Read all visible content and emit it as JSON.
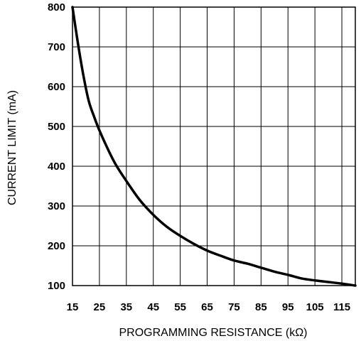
{
  "chart_data": {
    "type": "line",
    "title": "",
    "xlabel": "PROGRAMMING RESISTANCE (kΩ)",
    "ylabel": "CURRENT LIMIT (mA)",
    "xlim": [
      15,
      120
    ],
    "ylim": [
      100,
      800
    ],
    "xticks": [
      15,
      25,
      35,
      45,
      55,
      65,
      75,
      85,
      95,
      105,
      115
    ],
    "yticks": [
      100,
      200,
      300,
      400,
      500,
      600,
      700,
      800
    ],
    "grid": true,
    "series": [
      {
        "x": [
          15,
          17,
          19,
          21,
          23,
          25,
          28,
          31,
          35,
          40,
          45,
          50,
          55,
          60,
          65,
          70,
          75,
          80,
          85,
          90,
          95,
          100,
          105,
          110,
          115,
          120
        ],
        "y": [
          800,
          710,
          630,
          565,
          525,
          490,
          445,
          405,
          363,
          315,
          278,
          248,
          225,
          205,
          188,
          175,
          163,
          155,
          145,
          135,
          127,
          118,
          113,
          109,
          105,
          100
        ]
      }
    ],
    "line_color": "#000000"
  }
}
